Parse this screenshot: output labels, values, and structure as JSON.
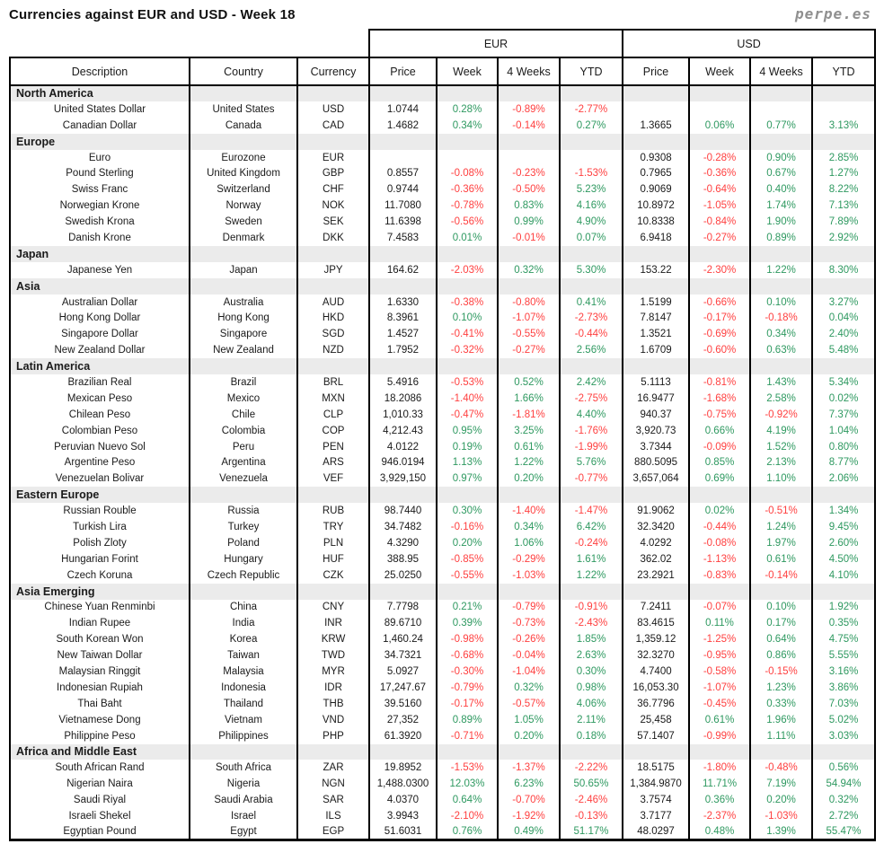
{
  "title": "Currencies against EUR and USD - Week 18",
  "brand": "perpe.es",
  "colors": {
    "positive": "#2e9960",
    "negative": "#ff4040",
    "section_bg": "#ebebeb",
    "border": "#000000"
  },
  "chart_data": {
    "type": "table",
    "group_headers": [
      "EUR",
      "USD"
    ],
    "columns": [
      "Description",
      "Country",
      "Currency",
      "Price",
      "Week",
      "4 Weeks",
      "YTD",
      "Price",
      "Week",
      "4 Weeks",
      "YTD"
    ],
    "sections": [
      {
        "name": "North America",
        "rows": [
          [
            "United States Dollar",
            "United States",
            "USD",
            "1.0744",
            "0.28%",
            "-0.89%",
            "-2.77%",
            "",
            "",
            "",
            ""
          ],
          [
            "Canadian Dollar",
            "Canada",
            "CAD",
            "1.4682",
            "0.34%",
            "-0.14%",
            "0.27%",
            "1.3665",
            "0.06%",
            "0.77%",
            "3.13%"
          ]
        ]
      },
      {
        "name": "Europe",
        "rows": [
          [
            "Euro",
            "Eurozone",
            "EUR",
            "",
            "",
            "",
            "",
            "0.9308",
            "-0.28%",
            "0.90%",
            "2.85%"
          ],
          [
            "Pound Sterling",
            "United Kingdom",
            "GBP",
            "0.8557",
            "-0.08%",
            "-0.23%",
            "-1.53%",
            "0.7965",
            "-0.36%",
            "0.67%",
            "1.27%"
          ],
          [
            "Swiss Franc",
            "Switzerland",
            "CHF",
            "0.9744",
            "-0.36%",
            "-0.50%",
            "5.23%",
            "0.9069",
            "-0.64%",
            "0.40%",
            "8.22%"
          ],
          [
            "Norwegian Krone",
            "Norway",
            "NOK",
            "11.7080",
            "-0.78%",
            "0.83%",
            "4.16%",
            "10.8972",
            "-1.05%",
            "1.74%",
            "7.13%"
          ],
          [
            "Swedish Krona",
            "Sweden",
            "SEK",
            "11.6398",
            "-0.56%",
            "0.99%",
            "4.90%",
            "10.8338",
            "-0.84%",
            "1.90%",
            "7.89%"
          ],
          [
            "Danish Krone",
            "Denmark",
            "DKK",
            "7.4583",
            "0.01%",
            "-0.01%",
            "0.07%",
            "6.9418",
            "-0.27%",
            "0.89%",
            "2.92%"
          ]
        ]
      },
      {
        "name": "Japan",
        "rows": [
          [
            "Japanese Yen",
            "Japan",
            "JPY",
            "164.62",
            "-2.03%",
            "0.32%",
            "5.30%",
            "153.22",
            "-2.30%",
            "1.22%",
            "8.30%"
          ]
        ]
      },
      {
        "name": "Asia",
        "rows": [
          [
            "Australian Dollar",
            "Australia",
            "AUD",
            "1.6330",
            "-0.38%",
            "-0.80%",
            "0.41%",
            "1.5199",
            "-0.66%",
            "0.10%",
            "3.27%"
          ],
          [
            "Hong Kong Dollar",
            "Hong Kong",
            "HKD",
            "8.3961",
            "0.10%",
            "-1.07%",
            "-2.73%",
            "7.8147",
            "-0.17%",
            "-0.18%",
            "0.04%"
          ],
          [
            "Singapore Dollar",
            "Singapore",
            "SGD",
            "1.4527",
            "-0.41%",
            "-0.55%",
            "-0.44%",
            "1.3521",
            "-0.69%",
            "0.34%",
            "2.40%"
          ],
          [
            "New Zealand Dollar",
            "New Zealand",
            "NZD",
            "1.7952",
            "-0.32%",
            "-0.27%",
            "2.56%",
            "1.6709",
            "-0.60%",
            "0.63%",
            "5.48%"
          ]
        ]
      },
      {
        "name": "Latin America",
        "rows": [
          [
            "Brazilian Real",
            "Brazil",
            "BRL",
            "5.4916",
            "-0.53%",
            "0.52%",
            "2.42%",
            "5.1113",
            "-0.81%",
            "1.43%",
            "5.34%"
          ],
          [
            "Mexican Peso",
            "Mexico",
            "MXN",
            "18.2086",
            "-1.40%",
            "1.66%",
            "-2.75%",
            "16.9477",
            "-1.68%",
            "2.58%",
            "0.02%"
          ],
          [
            "Chilean Peso",
            "Chile",
            "CLP",
            "1,010.33",
            "-0.47%",
            "-1.81%",
            "4.40%",
            "940.37",
            "-0.75%",
            "-0.92%",
            "7.37%"
          ],
          [
            "Colombian Peso",
            "Colombia",
            "COP",
            "4,212.43",
            "0.95%",
            "3.25%",
            "-1.76%",
            "3,920.73",
            "0.66%",
            "4.19%",
            "1.04%"
          ],
          [
            "Peruvian Nuevo Sol",
            "Peru",
            "PEN",
            "4.0122",
            "0.19%",
            "0.61%",
            "-1.99%",
            "3.7344",
            "-0.09%",
            "1.52%",
            "0.80%"
          ],
          [
            "Argentine Peso",
            "Argentina",
            "ARS",
            "946.0194",
            "1.13%",
            "1.22%",
            "5.76%",
            "880.5095",
            "0.85%",
            "2.13%",
            "8.77%"
          ],
          [
            "Venezuelan Bolivar",
            "Venezuela",
            "VEF",
            "3,929,150",
            "0.97%",
            "0.20%",
            "-0.77%",
            "3,657,064",
            "0.69%",
            "1.10%",
            "2.06%"
          ]
        ]
      },
      {
        "name": "Eastern Europe",
        "rows": [
          [
            "Russian Rouble",
            "Russia",
            "RUB",
            "98.7440",
            "0.30%",
            "-1.40%",
            "-1.47%",
            "91.9062",
            "0.02%",
            "-0.51%",
            "1.34%"
          ],
          [
            "Turkish Lira",
            "Turkey",
            "TRY",
            "34.7482",
            "-0.16%",
            "0.34%",
            "6.42%",
            "32.3420",
            "-0.44%",
            "1.24%",
            "9.45%"
          ],
          [
            "Polish Zloty",
            "Poland",
            "PLN",
            "4.3290",
            "0.20%",
            "1.06%",
            "-0.24%",
            "4.0292",
            "-0.08%",
            "1.97%",
            "2.60%"
          ],
          [
            "Hungarian Forint",
            "Hungary",
            "HUF",
            "388.95",
            "-0.85%",
            "-0.29%",
            "1.61%",
            "362.02",
            "-1.13%",
            "0.61%",
            "4.50%"
          ],
          [
            "Czech Koruna",
            "Czech Republic",
            "CZK",
            "25.0250",
            "-0.55%",
            "-1.03%",
            "1.22%",
            "23.2921",
            "-0.83%",
            "-0.14%",
            "4.10%"
          ]
        ]
      },
      {
        "name": "Asia Emerging",
        "rows": [
          [
            "Chinese Yuan Renminbi",
            "China",
            "CNY",
            "7.7798",
            "0.21%",
            "-0.79%",
            "-0.91%",
            "7.2411",
            "-0.07%",
            "0.10%",
            "1.92%"
          ],
          [
            "Indian Rupee",
            "India",
            "INR",
            "89.6710",
            "0.39%",
            "-0.73%",
            "-2.43%",
            "83.4615",
            "0.11%",
            "0.17%",
            "0.35%"
          ],
          [
            "South Korean Won",
            "Korea",
            "KRW",
            "1,460.24",
            "-0.98%",
            "-0.26%",
            "1.85%",
            "1,359.12",
            "-1.25%",
            "0.64%",
            "4.75%"
          ],
          [
            "New Taiwan Dollar",
            "Taiwan",
            "TWD",
            "34.7321",
            "-0.68%",
            "-0.04%",
            "2.63%",
            "32.3270",
            "-0.95%",
            "0.86%",
            "5.55%"
          ],
          [
            "Malaysian Ringgit",
            "Malaysia",
            "MYR",
            "5.0927",
            "-0.30%",
            "-1.04%",
            "0.30%",
            "4.7400",
            "-0.58%",
            "-0.15%",
            "3.16%"
          ],
          [
            "Indonesian Rupiah",
            "Indonesia",
            "IDR",
            "17,247.67",
            "-0.79%",
            "0.32%",
            "0.98%",
            "16,053.30",
            "-1.07%",
            "1.23%",
            "3.86%"
          ],
          [
            "Thai Baht",
            "Thailand",
            "THB",
            "39.5160",
            "-0.17%",
            "-0.57%",
            "4.06%",
            "36.7796",
            "-0.45%",
            "0.33%",
            "7.03%"
          ],
          [
            "Vietnamese Dong",
            "Vietnam",
            "VND",
            "27,352",
            "0.89%",
            "1.05%",
            "2.11%",
            "25,458",
            "0.61%",
            "1.96%",
            "5.02%"
          ],
          [
            "Philippine Peso",
            "Philippines",
            "PHP",
            "61.3920",
            "-0.71%",
            "0.20%",
            "0.18%",
            "57.1407",
            "-0.99%",
            "1.11%",
            "3.03%"
          ]
        ]
      },
      {
        "name": "Africa and Middle East",
        "rows": [
          [
            "South African Rand",
            "South Africa",
            "ZAR",
            "19.8952",
            "-1.53%",
            "-1.37%",
            "-2.22%",
            "18.5175",
            "-1.80%",
            "-0.48%",
            "0.56%"
          ],
          [
            "Nigerian Naira",
            "Nigeria",
            "NGN",
            "1,488.0300",
            "12.03%",
            "6.23%",
            "50.65%",
            "1,384.9870",
            "11.71%",
            "7.19%",
            "54.94%"
          ],
          [
            "Saudi Riyal",
            "Saudi Arabia",
            "SAR",
            "4.0370",
            "0.64%",
            "-0.70%",
            "-2.46%",
            "3.7574",
            "0.36%",
            "0.20%",
            "0.32%"
          ],
          [
            "Israeli Shekel",
            "Israel",
            "ILS",
            "3.9943",
            "-2.10%",
            "-1.92%",
            "-0.13%",
            "3.7177",
            "-2.37%",
            "-1.03%",
            "2.72%"
          ],
          [
            "Egyptian Pound",
            "Egypt",
            "EGP",
            "51.6031",
            "0.76%",
            "0.49%",
            "51.17%",
            "48.0297",
            "0.48%",
            "1.39%",
            "55.47%"
          ]
        ]
      }
    ]
  }
}
